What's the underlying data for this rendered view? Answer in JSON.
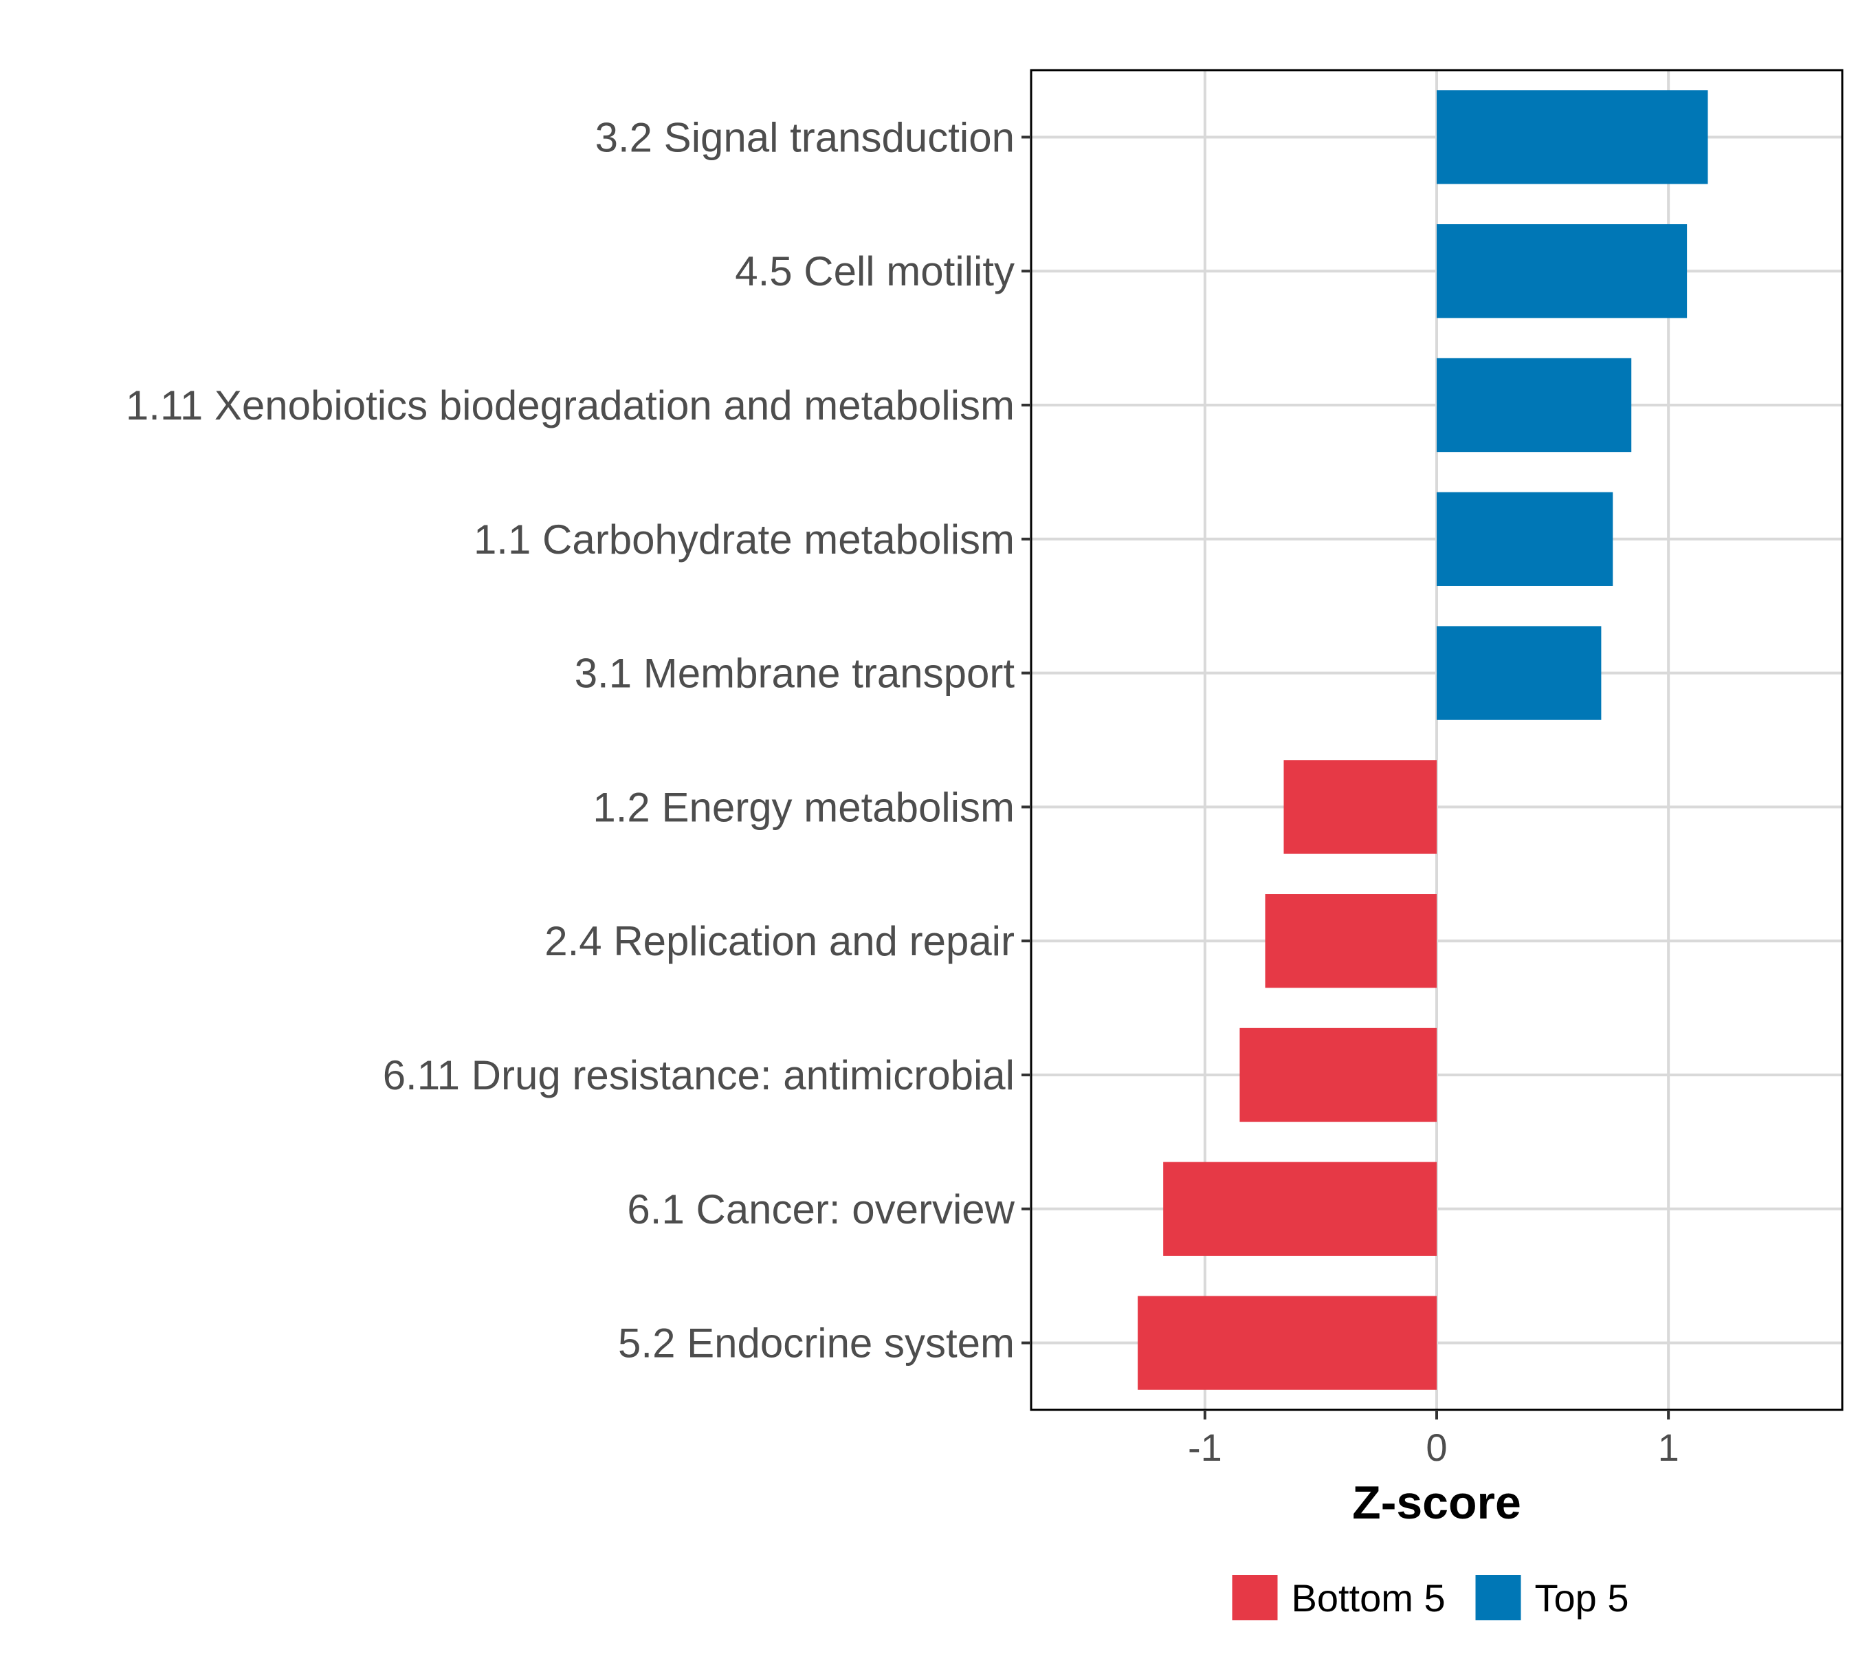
{
  "chart_data": {
    "type": "bar",
    "orientation": "horizontal",
    "title": "",
    "xlabel": "Z-score",
    "ylabel": "",
    "xlim": [
      -1.75,
      1.75
    ],
    "xticks": [
      -1,
      0,
      1
    ],
    "xtick_labels": [
      "-1",
      "0",
      "1"
    ],
    "grid": true,
    "legend_position": "bottom",
    "categories": [
      "3.2 Signal transduction",
      "4.5 Cell motility",
      "1.11 Xenobiotics biodegradation and metabolism",
      "1.1 Carbohydrate metabolism",
      "3.1 Membrane transport",
      "1.2 Energy metabolism",
      "2.4 Replication and repair",
      "6.11 Drug resistance: antimicrobial",
      "6.1 Cancer: overview",
      "5.2 Endocrine system"
    ],
    "values": [
      1.17,
      1.08,
      0.84,
      0.76,
      0.71,
      -0.66,
      -0.74,
      -0.85,
      -1.18,
      -1.29
    ],
    "groups": [
      "Top 5",
      "Top 5",
      "Top 5",
      "Top 5",
      "Top 5",
      "Bottom 5",
      "Bottom 5",
      "Bottom 5",
      "Bottom 5",
      "Bottom 5"
    ],
    "legend": [
      {
        "name": "Bottom 5",
        "color": "#e63946"
      },
      {
        "name": "Top 5",
        "color": "#0077b6"
      }
    ]
  }
}
